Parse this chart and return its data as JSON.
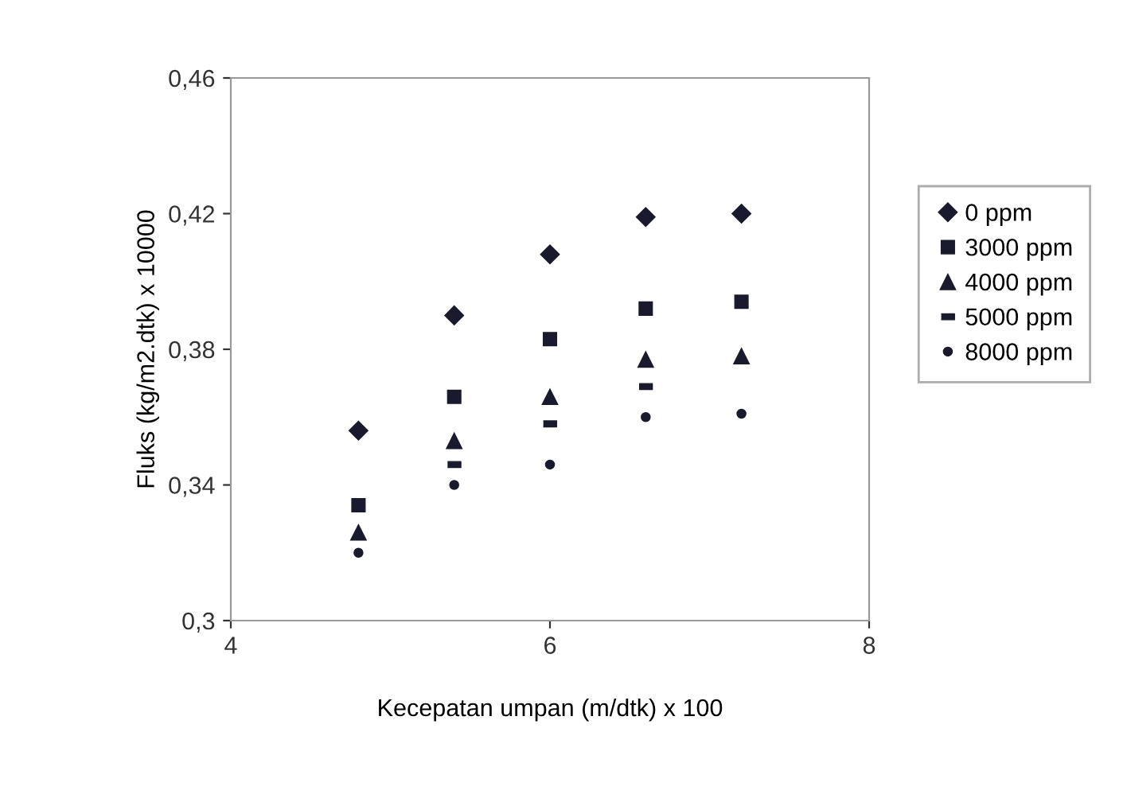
{
  "chart_data": {
    "type": "scatter",
    "xlabel": "Kecepatan umpan (m/dtk) x 100",
    "ylabel": "Fluks (kg/m2.dtk) x 10000",
    "x": [
      4.8,
      5.4,
      6.0,
      6.6,
      7.2
    ],
    "xlim": [
      4,
      8
    ],
    "xticks": [
      4,
      6,
      8
    ],
    "ylim": [
      0.3,
      0.46
    ],
    "yticks": [
      {
        "value": 0.3,
        "label": "0,3"
      },
      {
        "value": 0.34,
        "label": "0,34"
      },
      {
        "value": 0.38,
        "label": "0,38"
      },
      {
        "value": 0.42,
        "label": "0,42"
      },
      {
        "value": 0.46,
        "label": "0,46"
      }
    ],
    "legend": "right",
    "grid": false,
    "series": [
      {
        "name": "0 ppm",
        "color": "#1a1a2e",
        "marker": "diamond",
        "values": [
          0.356,
          0.39,
          0.408,
          0.419,
          0.42
        ]
      },
      {
        "name": "3000 ppm",
        "color": "#1a1a2e",
        "marker": "square",
        "values": [
          0.334,
          0.366,
          0.383,
          0.392,
          0.394
        ]
      },
      {
        "name": "4000 ppm",
        "color": "#1a1a2e",
        "marker": "triangle",
        "values": [
          0.326,
          0.353,
          0.366,
          0.377,
          0.378
        ]
      },
      {
        "name": "5000 ppm",
        "color": "#1a1a2e",
        "values": [
          null,
          0.346,
          0.358,
          0.369,
          null
        ]
      },
      {
        "name": "8000 ppm",
        "color": "#1a1a2e",
        "marker": "circle",
        "values": [
          0.32,
          0.34,
          0.346,
          0.36,
          0.361
        ]
      }
    ]
  }
}
